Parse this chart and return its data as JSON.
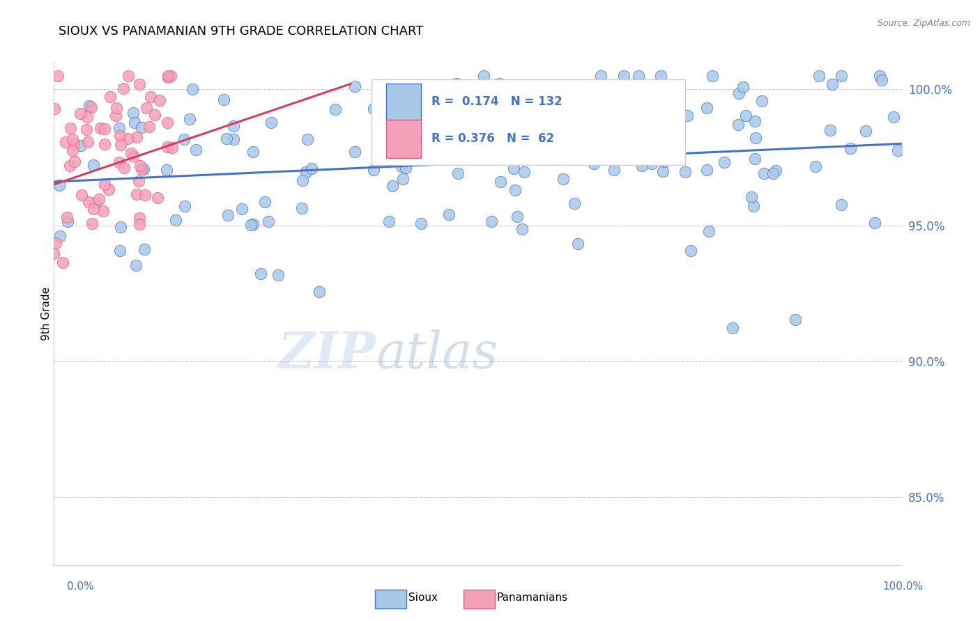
{
  "title": "SIOUX VS PANAMANIAN 9TH GRADE CORRELATION CHART",
  "source_text": "Source: ZipAtlas.com",
  "ylabel": "9th Grade",
  "ytick_values": [
    0.85,
    0.9,
    0.95,
    1.0
  ],
  "ytick_labels": [
    "85.0%",
    "90.0%",
    "95.0%",
    "100.0%"
  ],
  "xlim": [
    0.0,
    1.0
  ],
  "ylim": [
    0.825,
    1.01
  ],
  "legend_label_sioux": "Sioux",
  "legend_label_panam": "Panamanians",
  "blue_fill": "#A8C8E8",
  "blue_edge": "#4472C4",
  "pink_fill": "#F4A0B8",
  "pink_edge": "#E06080",
  "blue_line_color": "#4472C4",
  "pink_line_color": "#D04060",
  "text_color": "#4472C4",
  "watermark_zip": "ZIP",
  "watermark_atlas": "atlas",
  "blue_R": 0.174,
  "blue_N": 132,
  "pink_R": 0.376,
  "pink_N": 62,
  "blue_line_x0": 0.0,
  "blue_line_y0": 0.966,
  "blue_line_x1": 1.0,
  "blue_line_y1": 0.98,
  "pink_line_x0": 0.0,
  "pink_line_y0": 0.965,
  "pink_line_x1": 0.35,
  "pink_line_y1": 1.002
}
